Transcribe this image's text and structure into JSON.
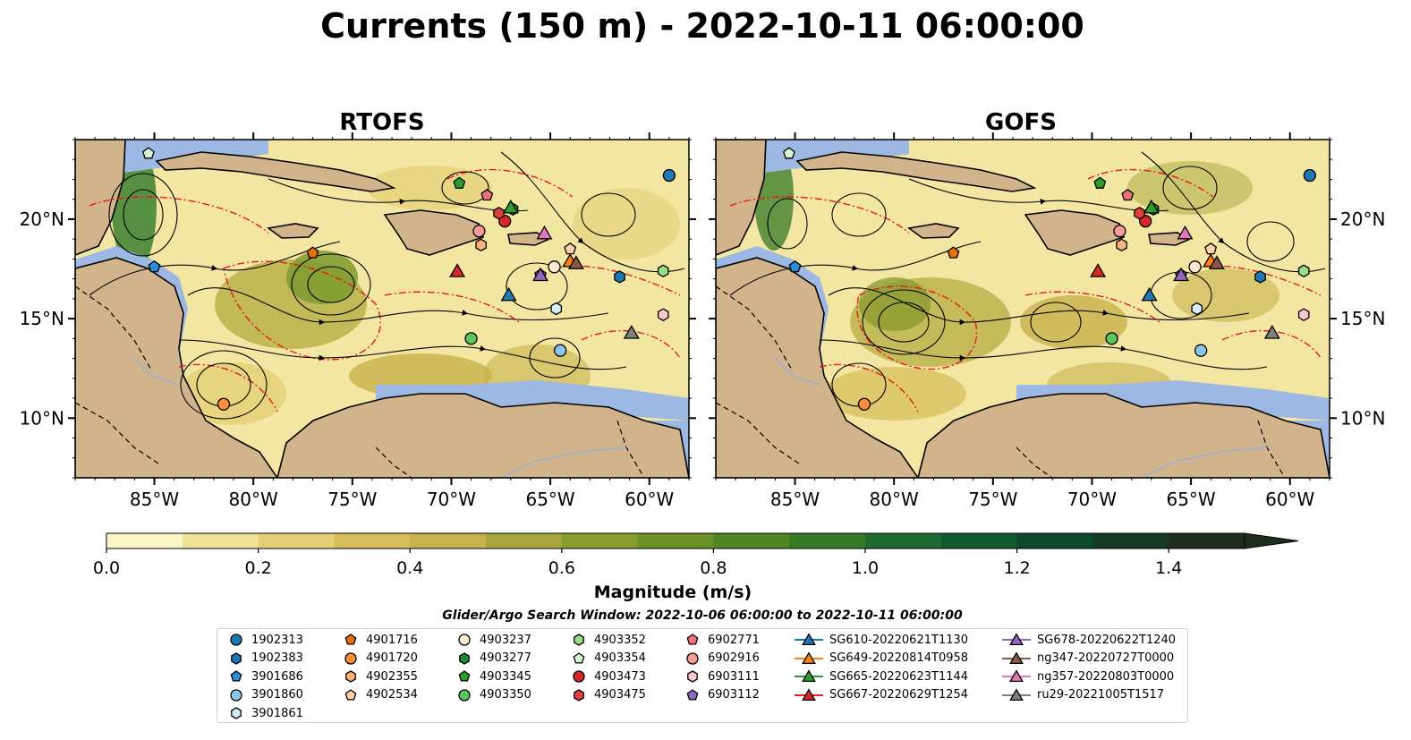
{
  "title": "Currents (150 m) - 2022-10-11 06:00:00",
  "panels": [
    {
      "name": "RTOFS"
    },
    {
      "name": "GOFS"
    }
  ],
  "colorbar": {
    "label": "Magnitude (m/s)",
    "ticks": [
      "0.0",
      "0.2",
      "0.4",
      "0.6",
      "0.8",
      "1.0",
      "1.2",
      "1.4"
    ]
  },
  "search_window": "Glider/Argo Search Window: 2022-10-06 06:00:00 to 2022-10-11 06:00:00",
  "chart_data": {
    "type": "heatmap",
    "title": "Currents (150 m) - 2022-10-11 06:00:00",
    "panels": [
      "RTOFS",
      "GOFS"
    ],
    "x_ticks": [
      "85°W",
      "80°W",
      "75°W",
      "70°W",
      "65°W",
      "60°W"
    ],
    "y_ticks": [
      "10°N",
      "15°N",
      "20°N"
    ],
    "xlim": [
      -89,
      -58
    ],
    "ylim": [
      7,
      24
    ],
    "colorbar": {
      "label": "Magnitude (m/s)",
      "range": [
        0,
        1.5
      ],
      "step": 0.1,
      "extend": "max"
    },
    "colormap": [
      "#fcf6c4",
      "#f2e39b",
      "#e3cf76",
      "#d6bc5a",
      "#c7b24b",
      "#a6a63d",
      "#8a9c2f",
      "#6d8f28",
      "#4f8525",
      "#357a24",
      "#1c6b30",
      "#0e5c30",
      "#0a4a2a",
      "#163a24",
      "#1e2e1c"
    ],
    "land_color": "#d2b48c",
    "ocean_color": "#9db8e2",
    "floats": [
      {
        "id": "1902313",
        "lon": -59.0,
        "lat": 22.2
      },
      {
        "id": "1902383",
        "lon": -61.5,
        "lat": 17.1
      },
      {
        "id": "3901686",
        "lon": -85.0,
        "lat": 17.6
      },
      {
        "id": "3901860",
        "lon": -64.5,
        "lat": 13.4
      },
      {
        "id": "3901861",
        "lon": -64.7,
        "lat": 15.5
      },
      {
        "id": "4901716",
        "lon": -77.0,
        "lat": 18.3
      },
      {
        "id": "4901720",
        "lon": -81.5,
        "lat": 10.7
      },
      {
        "id": "4902355",
        "lon": -68.5,
        "lat": 18.7
      },
      {
        "id": "4902534",
        "lon": -64.0,
        "lat": 18.5
      },
      {
        "id": "4903237",
        "lon": -64.8,
        "lat": 17.6
      },
      {
        "id": "4903277",
        "lon": -66.9,
        "lat": 20.5
      },
      {
        "id": "4903345",
        "lon": -69.6,
        "lat": 21.8
      },
      {
        "id": "4903350",
        "lon": -69.0,
        "lat": 14.0
      },
      {
        "id": "4903352",
        "lon": -59.3,
        "lat": 17.4
      },
      {
        "id": "4903354",
        "lon": -85.3,
        "lat": 23.3
      },
      {
        "id": "4903473",
        "lon": -67.3,
        "lat": 19.9
      },
      {
        "id": "4903475",
        "lon": -67.6,
        "lat": 20.3
      },
      {
        "id": "6902771",
        "lon": -68.2,
        "lat": 21.2
      },
      {
        "id": "6902916",
        "lon": -68.6,
        "lat": 19.4
      },
      {
        "id": "6903111",
        "lon": -59.3,
        "lat": 15.2
      },
      {
        "id": "6903112",
        "lon": -65.5,
        "lat": 17.2
      }
    ],
    "gliders": [
      {
        "id": "SG610-20220621T1130",
        "lon": -67.1,
        "lat": 16.2
      },
      {
        "id": "SG649-20220814T0958",
        "lon": -64.0,
        "lat": 17.9
      },
      {
        "id": "SG665-20220623T1144",
        "lon": -67.0,
        "lat": 20.6
      },
      {
        "id": "SG667-20220629T1254",
        "lon": -69.7,
        "lat": 17.4
      },
      {
        "id": "SG678-20220622T1240",
        "lon": -65.5,
        "lat": 17.2
      },
      {
        "id": "ng347-20220727T0000",
        "lon": -63.7,
        "lat": 17.8
      },
      {
        "id": "ng357-20220803T0000",
        "lon": -65.3,
        "lat": 19.3
      },
      {
        "id": "ru29-20221005T1517",
        "lon": -60.9,
        "lat": 14.3
      }
    ]
  },
  "legend": [
    {
      "label": "1902313",
      "marker": "circle",
      "color": "#1f77b4"
    },
    {
      "label": "1902383",
      "marker": "hexagon",
      "color": "#1f77b4"
    },
    {
      "label": "3901686",
      "marker": "pentagon",
      "color": "#2a8fd6"
    },
    {
      "label": "3901860",
      "marker": "circle",
      "color": "#8fc4ec"
    },
    {
      "label": "3901861",
      "marker": "hexagon",
      "color": "#d6ecfa"
    },
    {
      "label": "4901716",
      "marker": "pentagon",
      "color": "#e6700b"
    },
    {
      "label": "4901720",
      "marker": "circle",
      "color": "#fb8e3a"
    },
    {
      "label": "4902355",
      "marker": "hexagon",
      "color": "#fcb37b"
    },
    {
      "label": "4902534",
      "marker": "pentagon",
      "color": "#fdd0a8"
    },
    {
      "label": "4903237",
      "marker": "circle",
      "color": "#feead3"
    },
    {
      "label": "4903277",
      "marker": "hexagon",
      "color": "#1f8a2a"
    },
    {
      "label": "4903345",
      "marker": "pentagon",
      "color": "#2ca02c"
    },
    {
      "label": "4903350",
      "marker": "circle",
      "color": "#5cc45c"
    },
    {
      "label": "4903352",
      "marker": "hexagon",
      "color": "#98df8a"
    },
    {
      "label": "4903354",
      "marker": "pentagon",
      "color": "#d9f5d0"
    },
    {
      "label": "4903473",
      "marker": "circle",
      "color": "#d62728"
    },
    {
      "label": "4903475",
      "marker": "hexagon",
      "color": "#e0403a"
    },
    {
      "label": "6902771",
      "marker": "pentagon",
      "color": "#f2727a"
    },
    {
      "label": "6902916",
      "marker": "circle",
      "color": "#f79a98"
    },
    {
      "label": "6903111",
      "marker": "hexagon",
      "color": "#fbc8cc"
    },
    {
      "label": "6903112",
      "marker": "pentagon",
      "color": "#8c6bbf"
    },
    {
      "label": "SG610-20220621T1130",
      "marker": "triangle",
      "color": "#1f77b4",
      "line": true
    },
    {
      "label": "SG649-20220814T0958",
      "marker": "triangle",
      "color": "#ff7f0e",
      "line": true
    },
    {
      "label": "SG665-20220623T1144",
      "marker": "triangle",
      "color": "#2ca02c",
      "line": true
    },
    {
      "label": "SG667-20220629T1254",
      "marker": "triangle",
      "color": "#d62728",
      "line": true
    },
    {
      "label": "SG678-20220622T1240",
      "marker": "triangle",
      "color": "#9467bd",
      "line": true
    },
    {
      "label": "ng347-20220727T0000",
      "marker": "triangle",
      "color": "#8c564b",
      "line": true
    },
    {
      "label": "ng357-20220803T0000",
      "marker": "triangle",
      "color": "#e377c2",
      "line": true
    },
    {
      "label": "ru29-20221005T1517",
      "marker": "triangle",
      "color": "#7f7f7f",
      "line": true
    }
  ]
}
